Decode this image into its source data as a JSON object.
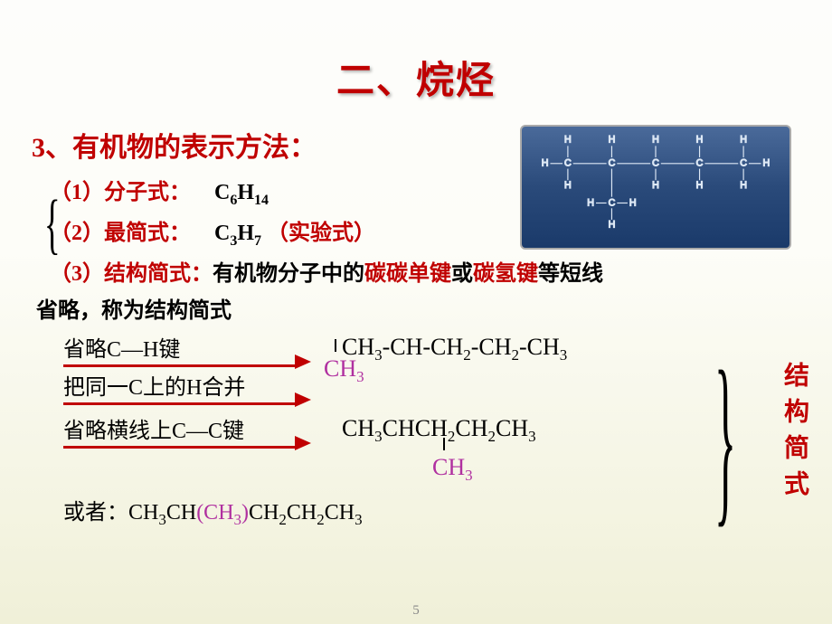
{
  "title": "二、烷烃",
  "section": "3、有机物的表示方法：",
  "items": {
    "molecular": {
      "label": "（1）分子式：",
      "value_html": "C<sub>6</sub>H<sub>14</sub>"
    },
    "empirical": {
      "label": "（2）最简式：",
      "value_html": "C<sub>3</sub>H<sub>7</sub>",
      "note": "（实验式）"
    },
    "condensed": {
      "label": "（3）结构简式：",
      "mid1": "有机物分子中的",
      "red1": "碳碳单键",
      "mid2": "或",
      "red2": "碳氢键",
      "mid3": "等短线",
      "cont": "省略，称为结构简式"
    }
  },
  "rules": {
    "r1": "省略C—H键",
    "r2": "把同一C上的H合并",
    "r3": "省略横线上C—C键"
  },
  "formulas": {
    "f1_main": "CH<sub>3</sub>-CH-CH<sub>2</sub>-CH<sub>2</sub>-CH<sub>3</sub>",
    "f1_sub": "CH<sub>3</sub>",
    "f2_main": "CH<sub>3</sub>CHCH<sub>2</sub>CH<sub>2</sub>CH<sub>3</sub>",
    "f2_sub": "CH<sub>3</sub>",
    "or_prefix": "或者：",
    "or_a": "CH<sub>3</sub>CH",
    "or_b": "(CH<sub>3</sub>)",
    "or_c": "CH<sub>2</sub>CH<sub>2</sub>CH<sub>3</sub>"
  },
  "side_label": "结构简式",
  "page": "5",
  "colors": {
    "red": "#c00000",
    "purple": "#b030a0",
    "molecule_bg_top": "#4a6a9a",
    "molecule_bg_bottom": "#1a3a6a",
    "molecule_stroke": "#dde8f5"
  }
}
